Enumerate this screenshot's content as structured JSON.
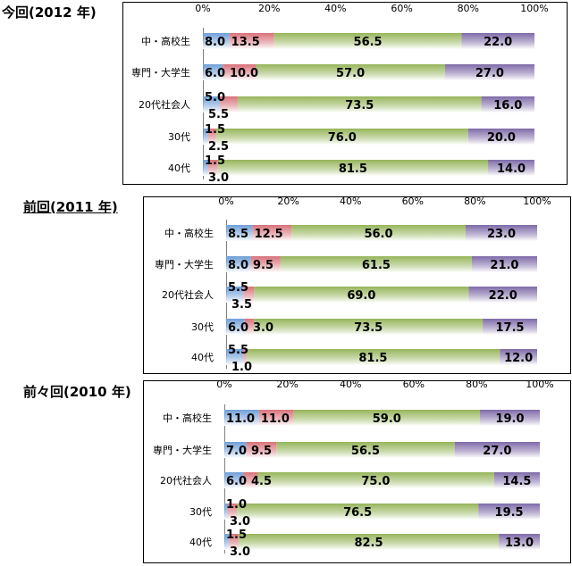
{
  "colors": {
    "segments": [
      "#6f9fd8",
      "#d9727a",
      "#95b55a",
      "#7e6aa8"
    ]
  },
  "chart_data": [
    {
      "type": "bar",
      "orientation": "horizontal",
      "stacked": "percent",
      "title": "今回(2012 年)",
      "xlim": [
        0,
        100
      ],
      "x_ticks": [
        "0%",
        "20%",
        "40%",
        "60%",
        "80%",
        "100%"
      ],
      "categories": [
        "中・高校生",
        "専門・大学生",
        "20代社会人",
        "30代",
        "40代"
      ],
      "series": [
        {
          "values": [
            8.0,
            6.0,
            5.0,
            1.5,
            1.5
          ]
        },
        {
          "values": [
            13.5,
            10.0,
            5.5,
            2.5,
            3.0
          ]
        },
        {
          "values": [
            56.5,
            57.0,
            73.5,
            76.0,
            81.5
          ]
        },
        {
          "values": [
            22.0,
            27.0,
            16.0,
            20.0,
            14.0
          ]
        }
      ],
      "data_labels": [
        [
          "8.0",
          "13.5",
          "56.5",
          "22.0"
        ],
        [
          "6.0",
          "10.0",
          "57.0",
          "27.0"
        ],
        [
          "5.0",
          "5.5",
          "73.5",
          "16.0"
        ],
        [
          "1.5",
          "2.5",
          "76.0",
          "20.0"
        ],
        [
          "1.5",
          "3.0",
          "81.5",
          "14.0"
        ]
      ]
    },
    {
      "type": "bar",
      "orientation": "horizontal",
      "stacked": "percent",
      "title": "前回(2011 年)",
      "xlim": [
        0,
        100
      ],
      "x_ticks": [
        "0%",
        "20%",
        "40%",
        "60%",
        "80%",
        "100%"
      ],
      "categories": [
        "中・高校生",
        "専門・大学生",
        "20代社会人",
        "30代",
        "40代"
      ],
      "series": [
        {
          "values": [
            8.5,
            8.0,
            5.5,
            6.0,
            5.5
          ]
        },
        {
          "values": [
            12.5,
            9.5,
            3.5,
            3.0,
            1.0
          ]
        },
        {
          "values": [
            56.0,
            61.5,
            69.0,
            73.5,
            81.5
          ]
        },
        {
          "values": [
            23.0,
            21.0,
            22.0,
            17.5,
            12.0
          ]
        }
      ],
      "data_labels": [
        [
          "8.5",
          "12.5",
          "56.0",
          "23.0"
        ],
        [
          "8.0",
          "9.5",
          "61.5",
          "21.0"
        ],
        [
          "5.5",
          "3.5",
          "69.0",
          "22.0"
        ],
        [
          "6.0",
          "3.0",
          "73.5",
          "17.5"
        ],
        [
          "5.5",
          "1.0",
          "81.5",
          "12.0"
        ]
      ]
    },
    {
      "type": "bar",
      "orientation": "horizontal",
      "stacked": "percent",
      "title": "前々回(2010 年)",
      "xlim": [
        0,
        100
      ],
      "x_ticks": [
        "0%",
        "20%",
        "40%",
        "60%",
        "80%",
        "100%"
      ],
      "categories": [
        "中・高校生",
        "専門・大学生",
        "20代社会人",
        "30代",
        "40代"
      ],
      "series": [
        {
          "values": [
            11.0,
            7.0,
            6.0,
            1.0,
            1.5
          ]
        },
        {
          "values": [
            11.0,
            9.5,
            4.5,
            3.0,
            3.0
          ]
        },
        {
          "values": [
            59.0,
            56.5,
            75.0,
            76.5,
            82.5
          ]
        },
        {
          "values": [
            19.0,
            27.0,
            14.5,
            19.5,
            13.0
          ]
        }
      ],
      "data_labels": [
        [
          "11.0",
          "11.0",
          "59.0",
          "19.0"
        ],
        [
          "7.0",
          "9.5",
          "56.5",
          "27.0"
        ],
        [
          "6.0",
          "4.5",
          "75.0",
          "14.5"
        ],
        [
          "1.0",
          "3.0",
          "76.5",
          "19.5"
        ],
        [
          "1.5",
          "3.0",
          "82.5",
          "13.0"
        ]
      ]
    }
  ]
}
